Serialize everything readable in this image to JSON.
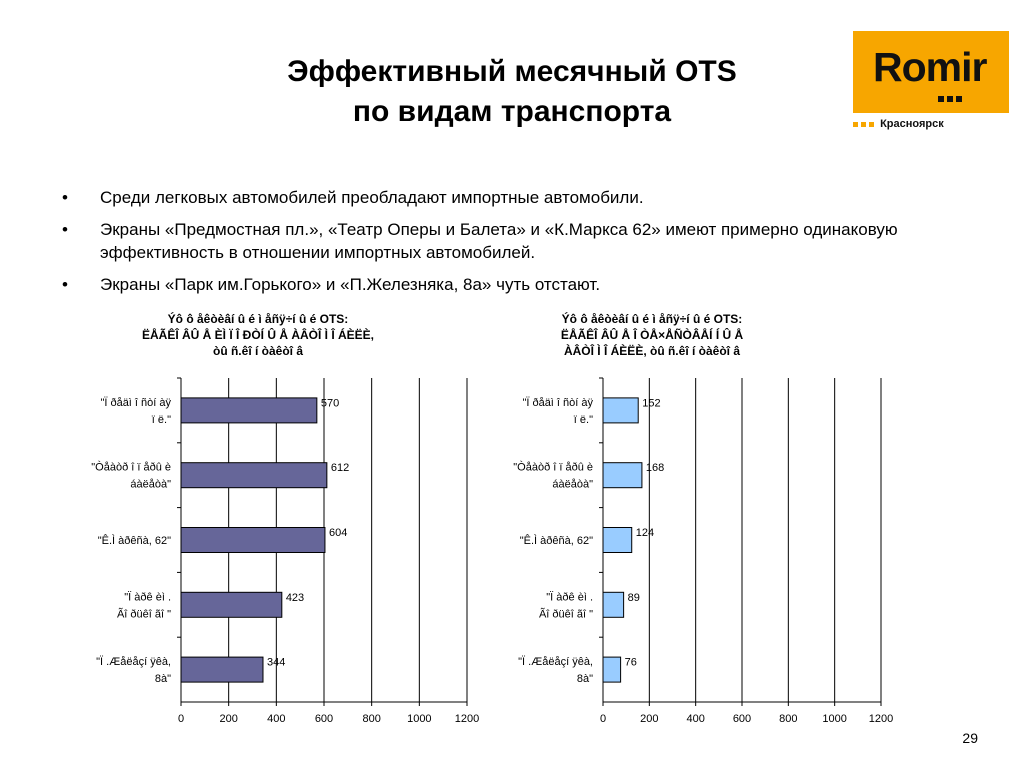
{
  "title": {
    "line1": "Эффективный месячный OTS",
    "line2": "по видам транспорта"
  },
  "logo": {
    "brand": "Romir",
    "city": "Красноярск"
  },
  "bullets": [
    "Среди легковых автомобилей преобладают импортные автомобили.",
    "Экраны «Предмостная пл.», «Театр Оперы и Балета» и «К.Маркса 62» имеют примерно одинаковую эффективность в отношении импортных автомобилей.",
    "Экраны «Парк им.Горького» и «П.Железняка, 8а» чуть отстают."
  ],
  "page_number": "29",
  "chart_data": [
    {
      "type": "bar",
      "orientation": "horizontal",
      "title_lines": [
        "Ýô ô åêòèâí û é ì åñÿ÷í û é OTS:",
        "ËÅÃÊÎ ÂÛ Å ÈÌ Ï Î ÐÒÍ Û Å ÀÂÒÎ Ì Î ÁÈËÈ,",
        "òû ñ.êî í òàêòî â"
      ],
      "categories": [
        [
          "\"Ï ðåäì î ñòí àÿ",
          "ï ë.\""
        ],
        [
          "\"Òåàòð î ï åðû  è",
          "áàëåòà\""
        ],
        [
          "\"Ê.Ì àðêñà, 62\""
        ],
        [
          "\"Ï àðê èì .",
          "Ãî ðüêî ãî \""
        ],
        [
          "\"Ï .Æåëåçí ÿêà,",
          "8à\""
        ]
      ],
      "values": [
        570,
        612,
        604,
        423,
        344
      ],
      "xlim": [
        0,
        1200
      ],
      "xticks": [
        "0",
        "200",
        "400",
        "600",
        "800",
        "1000",
        "1200"
      ],
      "grid": true,
      "bar_color": "#666699"
    },
    {
      "type": "bar",
      "orientation": "horizontal",
      "title_lines": [
        "Ýô ô åêòèâí û é ì åñÿ÷í û é OTS:",
        "ËÅÃÊÎ ÂÛ Å Î ÒÅ×ÅÑÒÂÅÍ Í Û Å",
        "ÀÂÒÎ Ì Î ÁÈËÈ, òû ñ.êî í òàêòî â"
      ],
      "categories": [
        [
          "\"Ï ðåäì î ñòí àÿ",
          "ï ë.\""
        ],
        [
          "\"Òåàòð î ï åðû  è",
          "áàëåòà\""
        ],
        [
          "\"Ê.Ì àðêñà, 62\""
        ],
        [
          "\"Ï àðê èì .",
          "Ãî ðüêî ãî \""
        ],
        [
          "\"Ï .Æåëåçí ÿêà,",
          "8à\""
        ]
      ],
      "values": [
        152,
        168,
        124,
        89,
        76
      ],
      "xlim": [
        0,
        1200
      ],
      "xticks": [
        "0",
        "200",
        "400",
        "600",
        "800",
        "1000",
        "1200"
      ],
      "grid": true,
      "bar_color": "#99ccff"
    }
  ]
}
